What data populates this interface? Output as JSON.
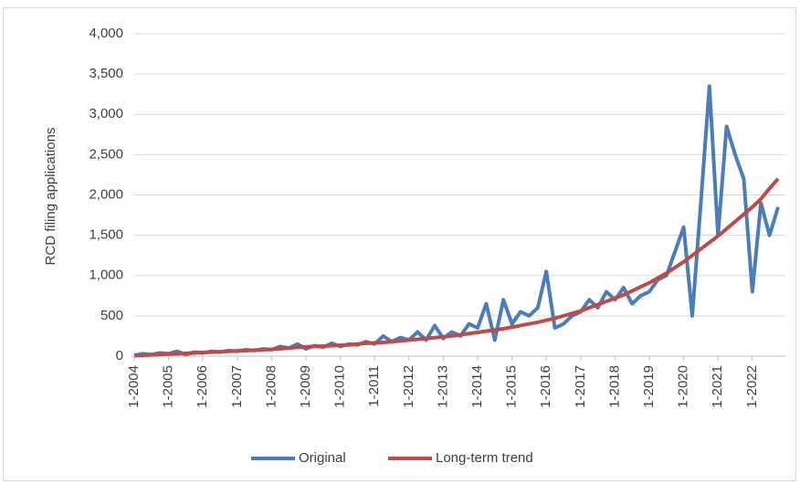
{
  "chart_data": {
    "type": "line",
    "y_label": "RCD filing applications",
    "categories": [
      "1-2004",
      null,
      null,
      null,
      "1-2005",
      null,
      null,
      null,
      "1-2006",
      null,
      null,
      null,
      "1-2007",
      null,
      null,
      null,
      "1-2008",
      null,
      null,
      null,
      "1-2009",
      null,
      null,
      null,
      "1-2010",
      null,
      null,
      null,
      "1-2011",
      null,
      null,
      null,
      "1-2012",
      null,
      null,
      null,
      "1-2013",
      null,
      null,
      null,
      "1-2014",
      null,
      null,
      null,
      "1-2015",
      null,
      null,
      null,
      "1-2016",
      null,
      null,
      null,
      "1-2017",
      null,
      null,
      null,
      "1-2018",
      null,
      null,
      null,
      "1-2019",
      null,
      null,
      null,
      "1-2020",
      null,
      null,
      null,
      "1-2021",
      null,
      null,
      null,
      "1-2022",
      null,
      null,
      null
    ],
    "series": [
      {
        "name": "Original",
        "color": "#4a7ebb",
        "values": [
          10,
          30,
          20,
          40,
          30,
          60,
          20,
          50,
          40,
          60,
          50,
          70,
          60,
          80,
          70,
          90,
          80,
          120,
          100,
          150,
          90,
          130,
          110,
          160,
          120,
          150,
          140,
          180,
          150,
          250,
          180,
          230,
          200,
          300,
          200,
          380,
          220,
          300,
          250,
          400,
          350,
          650,
          200,
          700,
          400,
          550,
          500,
          600,
          1050,
          350,
          400,
          500,
          550,
          700,
          600,
          800,
          700,
          850,
          650,
          750,
          800,
          950,
          1000,
          1300,
          1600,
          500,
          1900,
          3350,
          1500,
          2850,
          2500,
          2200,
          800,
          1900,
          1500,
          1850
        ]
      },
      {
        "name": "Long-term trend",
        "color": "#be4b48",
        "values": [
          5,
          10,
          15,
          20,
          25,
          30,
          35,
          40,
          45,
          50,
          55,
          60,
          65,
          70,
          75,
          80,
          85,
          90,
          100,
          110,
          115,
          120,
          125,
          130,
          135,
          140,
          150,
          160,
          165,
          170,
          180,
          190,
          200,
          210,
          220,
          230,
          240,
          250,
          265,
          280,
          295,
          310,
          325,
          340,
          360,
          380,
          400,
          420,
          445,
          470,
          500,
          530,
          560,
          600,
          640,
          680,
          720,
          760,
          810,
          860,
          910,
          970,
          1030,
          1100,
          1170,
          1250,
          1330,
          1410,
          1490,
          1580,
          1670,
          1760,
          1850,
          1950,
          2080,
          2200
        ]
      }
    ],
    "ylim": [
      0,
      4000
    ],
    "yticks": [
      0,
      500,
      {
        "value": 1000,
        "label": "1,000"
      },
      {
        "value": 1500,
        "label": "1,500"
      },
      {
        "value": 2000,
        "label": "2,000"
      },
      {
        "value": 2500,
        "label": "2,500"
      },
      {
        "value": 3000,
        "label": "3,000"
      },
      {
        "value": 3500,
        "label": "3,500"
      },
      {
        "value": 4000,
        "label": "4,000"
      }
    ],
    "grid": true
  }
}
